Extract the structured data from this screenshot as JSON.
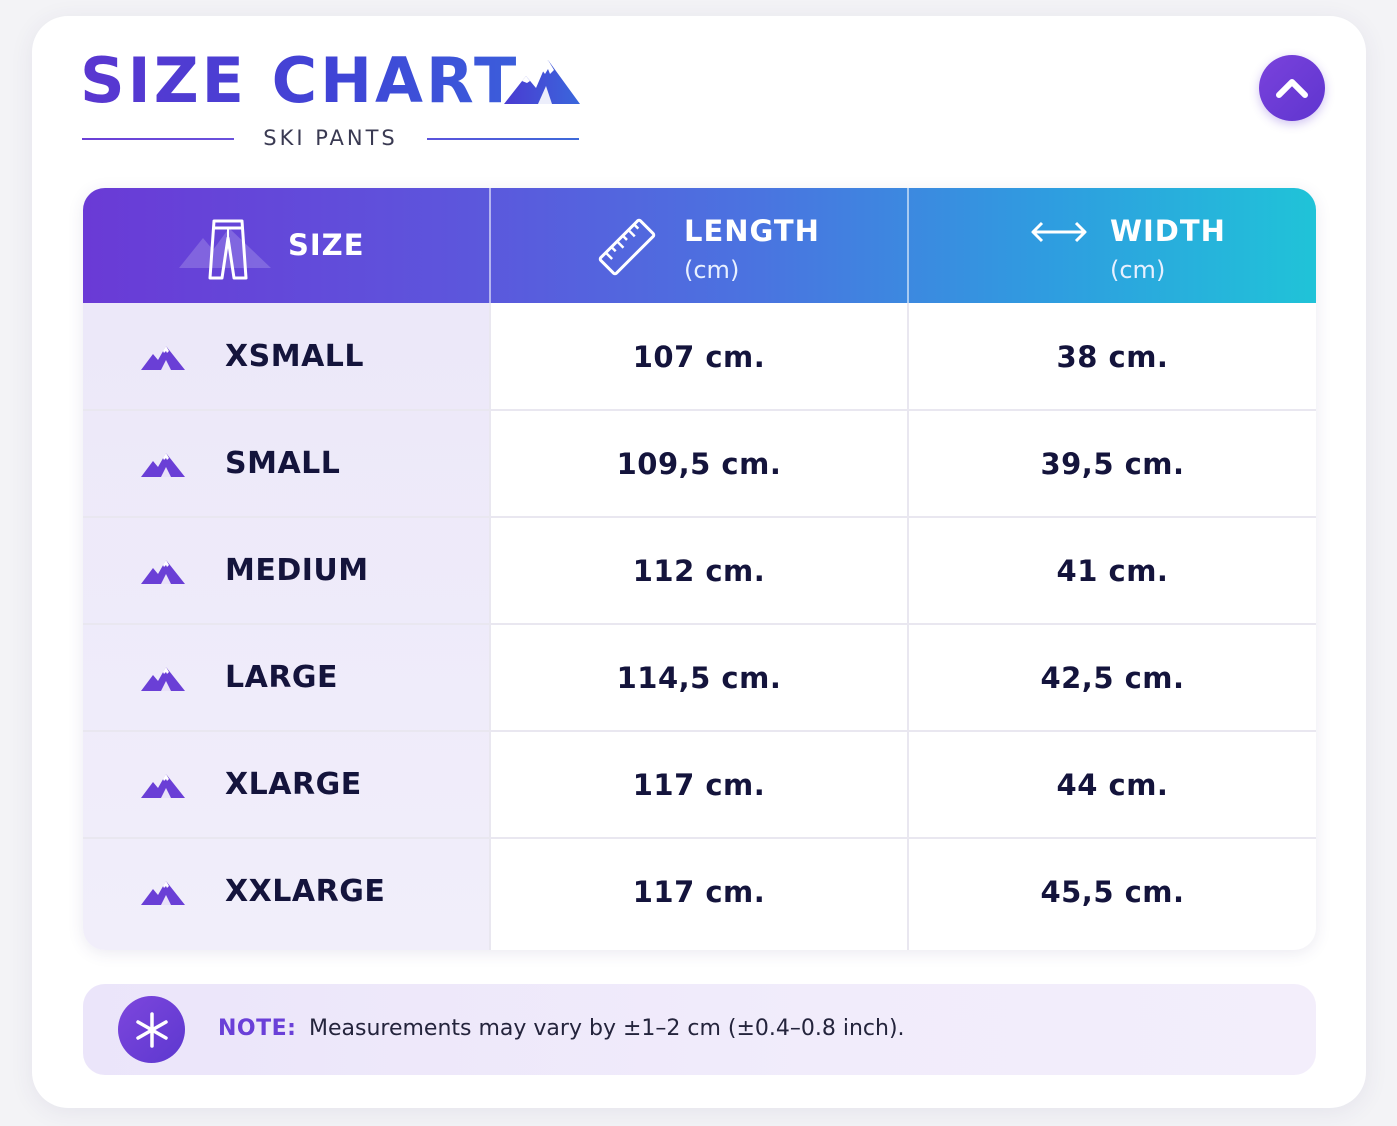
{
  "header": {
    "title": "SIZE CHART",
    "subtitle": "SKI PANTS"
  },
  "colors": {
    "accent": "#5f35cf",
    "header_gradient_start": "#6a3ad6",
    "header_gradient_end": "#20c3d8",
    "text_dark": "#14143c"
  },
  "table": {
    "columns": [
      {
        "label": "SIZE",
        "unit": "",
        "icon": "pants-icon"
      },
      {
        "label": "LENGTH",
        "unit": "(cm)",
        "icon": "ruler-icon"
      },
      {
        "label": "WIDTH",
        "unit": "(cm)",
        "icon": "double-arrow-icon"
      }
    ],
    "rows": [
      {
        "size": "XSMALL",
        "length": "107 cm.",
        "width": "38 cm."
      },
      {
        "size": "SMALL",
        "length": "109,5 cm.",
        "width": "39,5 cm."
      },
      {
        "size": "MEDIUM",
        "length": "112 cm.",
        "width": "41 cm."
      },
      {
        "size": "LARGE",
        "length": "114,5 cm.",
        "width": "42,5 cm."
      },
      {
        "size": "XLARGE",
        "length": "117 cm.",
        "width": "44 cm."
      },
      {
        "size": "XXLARGE",
        "length": "117 cm.",
        "width": "45,5 cm."
      }
    ]
  },
  "note": {
    "label": "NOTE:",
    "text": "Measurements may vary by ±1–2 cm (±0.4–0.8 inch).",
    "icon": "snowflake-icon"
  },
  "collapse_button": {
    "icon": "chevron-up-icon"
  }
}
